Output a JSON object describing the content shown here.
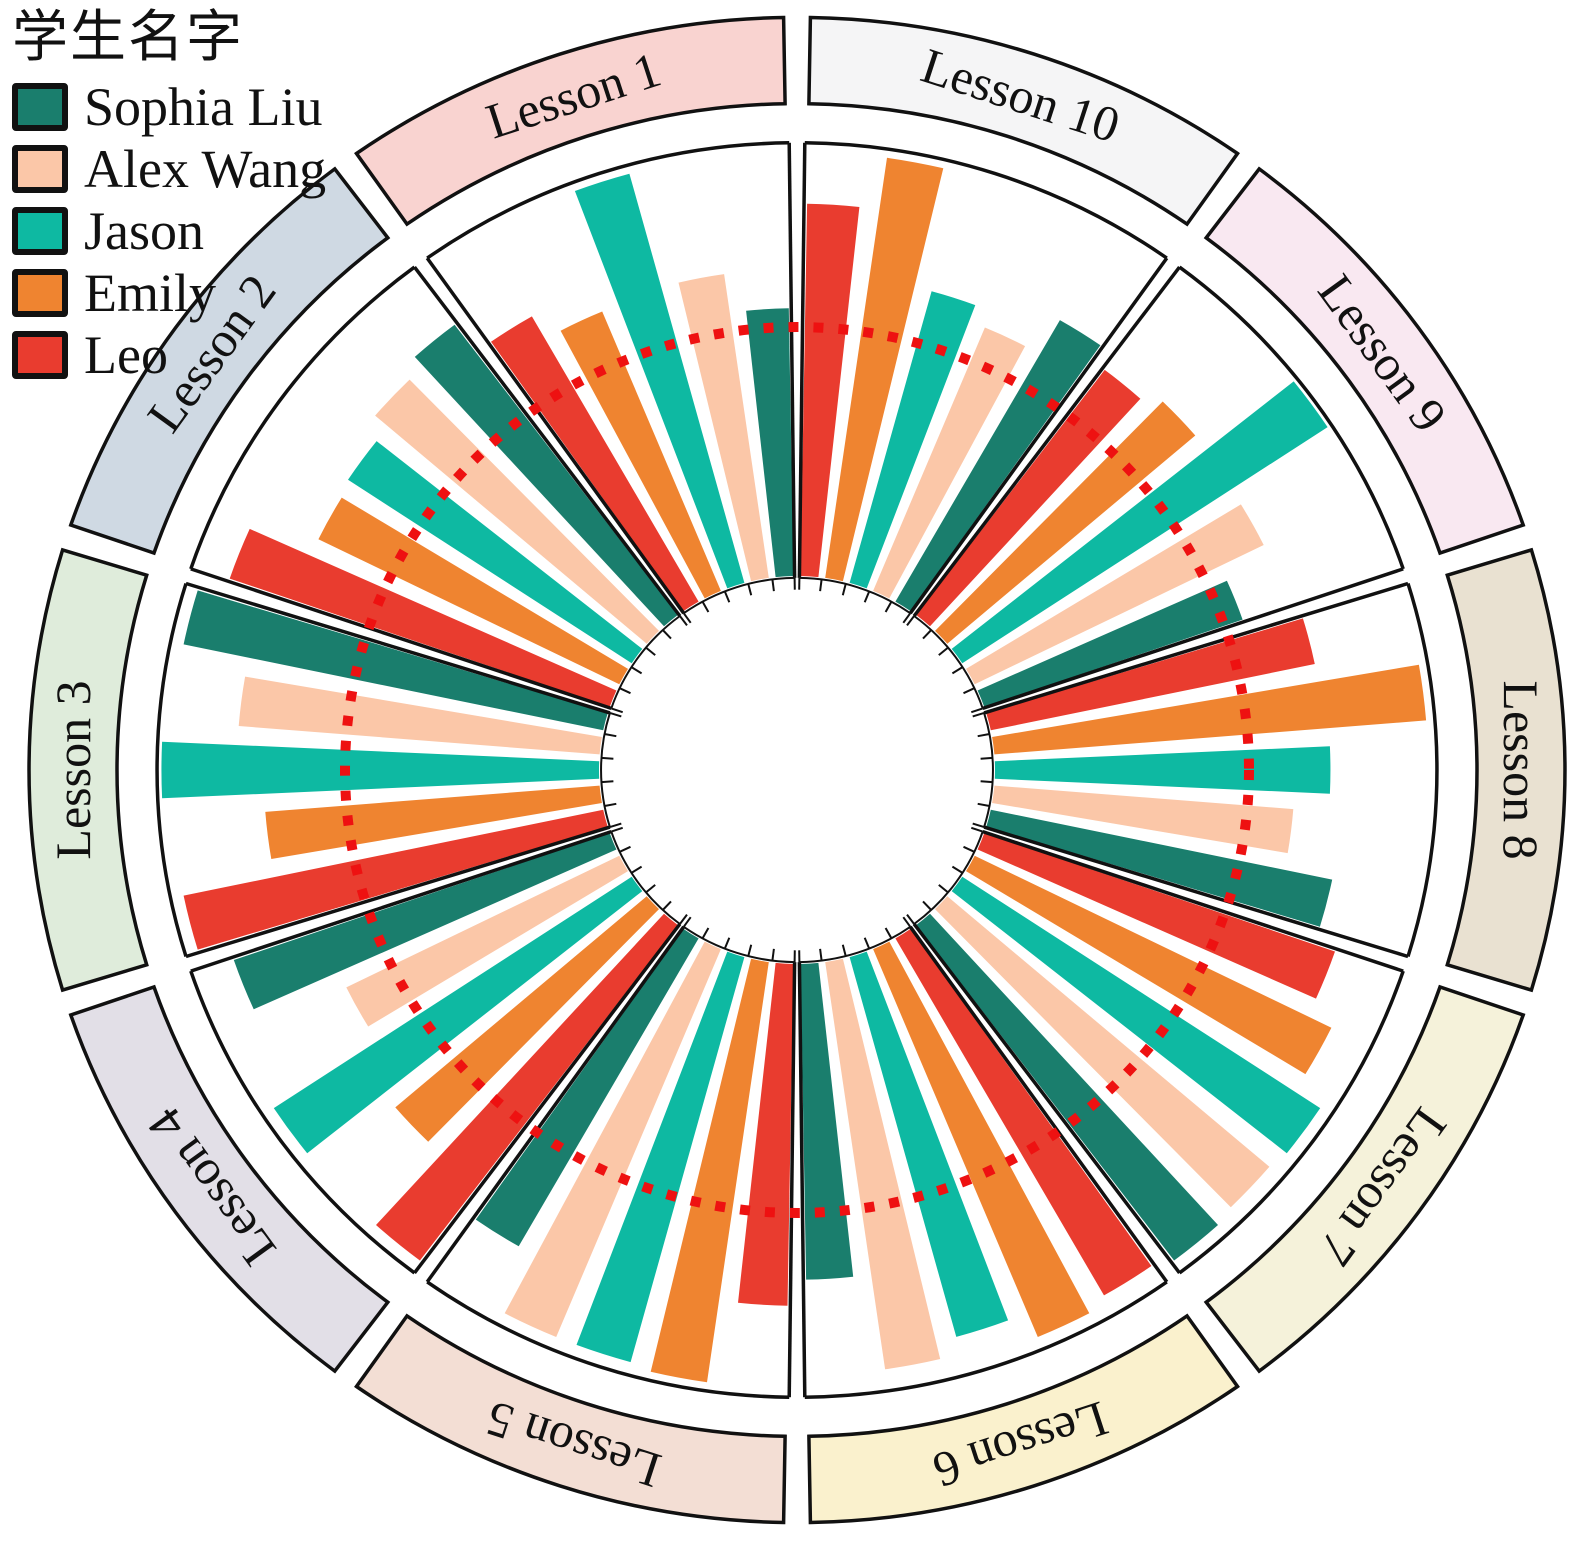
{
  "chart_data": {
    "type": "bar",
    "subtype": "circular-grouped-bar (polar)",
    "title": "",
    "legend_title": "学生名字",
    "legend_position": "top-left",
    "categories": [
      "Lesson 1",
      "Lesson 2",
      "Lesson 3",
      "Lesson 4",
      "Lesson 5",
      "Lesson 6",
      "Lesson 7",
      "Lesson 8",
      "Lesson 9",
      "Lesson 10"
    ],
    "series": [
      {
        "name": "Sophia Liu",
        "color": "#1a7e6d",
        "values": [
          62,
          84,
          97,
          90,
          82,
          73,
          97,
          79,
          62,
          75
        ]
      },
      {
        "name": "Alex Wang",
        "color": "#fbc7a8",
        "values": [
          71,
          81,
          82,
          69,
          97,
          95,
          96,
          68,
          73,
          66
        ]
      },
      {
        "name": "Jason",
        "color": "#0eb9a2",
        "values": [
          98,
          77,
          99,
          97,
          97,
          91,
          97,
          76,
          99,
          70
        ]
      },
      {
        "name": "Emily",
        "color": "#ef8430",
        "values": [
          70,
          76,
          76,
          75,
          98,
          97,
          90,
          98,
          74,
          98
        ]
      },
      {
        "name": "Leo",
        "color": "#e93c2f",
        "values": [
          76,
          91,
          97,
          97,
          79,
          95,
          84,
          75,
          71,
          86
        ]
      }
    ],
    "ylim": [
      0,
      100
    ],
    "reference_ring": {
      "value": 58,
      "color": "#ee1111",
      "style": "dotted-circle"
    },
    "sector_band_colors": [
      "#f9d3d0",
      "#cfd9e3",
      "#dfecdb",
      "#e2dfe7",
      "#f3ded4",
      "#faf1cd",
      "#f5f2da",
      "#e9e1d1",
      "#f9e8f1",
      "#f5f5f6"
    ],
    "layout": {
      "start_angle_deg": 90,
      "direction": "counterclockwise",
      "inner_hole": true,
      "grid": "off",
      "outer_label_ring": true
    }
  }
}
